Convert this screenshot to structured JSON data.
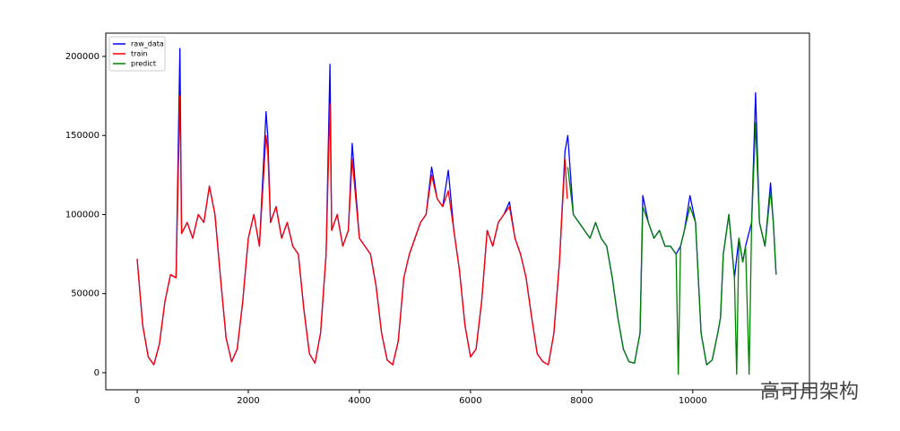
{
  "chart_data": {
    "type": "line",
    "xlim": [
      -565,
      12100
    ],
    "ylim": [
      -10800,
      214700
    ],
    "xticks": [
      0,
      2000,
      4000,
      6000,
      8000,
      10000
    ],
    "yticks": [
      0,
      50000,
      100000,
      150000,
      200000
    ],
    "legend": "upper left",
    "watermark": "高可用架构",
    "series": [
      {
        "name": "raw_data",
        "color": "#0000ff",
        "x": [
          0,
          100,
          200,
          300,
          400,
          500,
          600,
          700,
          770,
          800,
          900,
          1000,
          1100,
          1200,
          1300,
          1400,
          1500,
          1600,
          1700,
          1800,
          1900,
          2000,
          2100,
          2200,
          2320,
          2350,
          2400,
          2500,
          2600,
          2700,
          2800,
          2900,
          3000,
          3100,
          3200,
          3300,
          3400,
          3470,
          3500,
          3600,
          3700,
          3800,
          3870,
          4000,
          4100,
          4200,
          4300,
          4400,
          4500,
          4600,
          4700,
          4800,
          4900,
          5000,
          5100,
          5200,
          5300,
          5400,
          5500,
          5600,
          5700,
          5800,
          5900,
          6000,
          6100,
          6200,
          6300,
          6400,
          6500,
          6600,
          6700,
          6800,
          6900,
          7000,
          7100,
          7200,
          7300,
          7400,
          7500,
          7600,
          7700,
          7750,
          7850,
          7950,
          8050,
          8150,
          8250,
          8350,
          8450,
          8550,
          8650,
          8750,
          8850,
          8950,
          9050,
          9100,
          9200,
          9300,
          9400,
          9500,
          9600,
          9700,
          9780,
          9850,
          9950,
          10050,
          10100,
          10150,
          10250,
          10350,
          10450,
          10500,
          10550,
          10650,
          10750,
          10830,
          10900,
          10950,
          11060,
          11130,
          11200,
          11300,
          11400,
          11450,
          11500
        ],
        "values": [
          72000,
          30000,
          10000,
          5000,
          18000,
          45000,
          62000,
          60000,
          205000,
          88000,
          95000,
          85000,
          100000,
          95000,
          118000,
          100000,
          60000,
          22000,
          7000,
          15000,
          45000,
          85000,
          100000,
          80000,
          165000,
          150000,
          95000,
          105000,
          85000,
          95000,
          80000,
          75000,
          40000,
          12000,
          6000,
          25000,
          75000,
          195000,
          90000,
          100000,
          80000,
          90000,
          145000,
          85000,
          80000,
          75000,
          55000,
          25000,
          8000,
          5000,
          20000,
          60000,
          75000,
          85000,
          95000,
          100000,
          130000,
          110000,
          105000,
          128000,
          90000,
          65000,
          30000,
          10000,
          15000,
          45000,
          90000,
          80000,
          95000,
          100000,
          108000,
          85000,
          75000,
          60000,
          35000,
          12000,
          7000,
          5000,
          25000,
          70000,
          140000,
          150000,
          100000,
          95000,
          90000,
          85000,
          95000,
          85000,
          80000,
          60000,
          35000,
          15000,
          7000,
          6000,
          25000,
          112000,
          95000,
          85000,
          90000,
          80000,
          80000,
          75000,
          80000,
          90000,
          112000,
          95000,
          60000,
          25000,
          5000,
          8000,
          25000,
          35000,
          75000,
          100000,
          60000,
          85000,
          70000,
          80000,
          95000,
          177000,
          95000,
          80000,
          120000,
          95000,
          62000
        ]
      },
      {
        "name": "train",
        "color": "#ff0000",
        "x": [
          0,
          100,
          200,
          300,
          400,
          500,
          600,
          700,
          770,
          800,
          900,
          1000,
          1100,
          1200,
          1300,
          1400,
          1500,
          1600,
          1700,
          1800,
          1900,
          2000,
          2100,
          2200,
          2320,
          2350,
          2400,
          2500,
          2600,
          2700,
          2800,
          2900,
          3000,
          3100,
          3200,
          3300,
          3400,
          3470,
          3500,
          3600,
          3700,
          3800,
          3870,
          4000,
          4100,
          4200,
          4300,
          4400,
          4500,
          4600,
          4700,
          4800,
          4900,
          5000,
          5100,
          5200,
          5300,
          5400,
          5500,
          5600,
          5700,
          5800,
          5900,
          6000,
          6100,
          6200,
          6300,
          6400,
          6500,
          6600,
          6700,
          6800,
          6900,
          7000,
          7100,
          7200,
          7300,
          7400,
          7500,
          7600,
          7700,
          7740
        ],
        "values": [
          72000,
          30000,
          10000,
          5000,
          18000,
          45000,
          62000,
          60000,
          175000,
          88000,
          95000,
          85000,
          100000,
          95000,
          118000,
          100000,
          60000,
          22000,
          7000,
          15000,
          45000,
          85000,
          100000,
          80000,
          150000,
          140000,
          95000,
          105000,
          85000,
          95000,
          80000,
          75000,
          40000,
          12000,
          6000,
          25000,
          75000,
          170000,
          90000,
          100000,
          80000,
          90000,
          135000,
          85000,
          80000,
          75000,
          55000,
          25000,
          8000,
          5000,
          20000,
          60000,
          75000,
          85000,
          95000,
          100000,
          125000,
          110000,
          105000,
          115000,
          90000,
          65000,
          30000,
          10000,
          15000,
          45000,
          90000,
          80000,
          95000,
          100000,
          105000,
          85000,
          75000,
          60000,
          35000,
          12000,
          7000,
          5000,
          25000,
          70000,
          135000,
          110000
        ]
      },
      {
        "name": "predict",
        "color": "#008000",
        "x": [
          7750,
          7850,
          7950,
          8050,
          8150,
          8250,
          8350,
          8450,
          8550,
          8650,
          8750,
          8850,
          8950,
          9050,
          9100,
          9200,
          9300,
          9400,
          9500,
          9600,
          9700,
          9740,
          9780,
          9850,
          9950,
          10050,
          10100,
          10150,
          10250,
          10350,
          10450,
          10500,
          10550,
          10650,
          10750,
          10790,
          10830,
          10900,
          10950,
          11015,
          11060,
          11130,
          11200,
          11300,
          11400,
          11450,
          11500
        ],
        "values": [
          130000,
          100000,
          95000,
          90000,
          85000,
          95000,
          85000,
          80000,
          60000,
          35000,
          15000,
          7000,
          6000,
          25000,
          105000,
          95000,
          85000,
          90000,
          80000,
          80000,
          75000,
          -1000,
          80000,
          90000,
          105000,
          95000,
          60000,
          25000,
          5000,
          8000,
          25000,
          35000,
          75000,
          100000,
          60000,
          -1000,
          85000,
          70000,
          80000,
          -1000,
          95000,
          158000,
          95000,
          80000,
          115000,
          95000,
          62000
        ]
      }
    ]
  }
}
